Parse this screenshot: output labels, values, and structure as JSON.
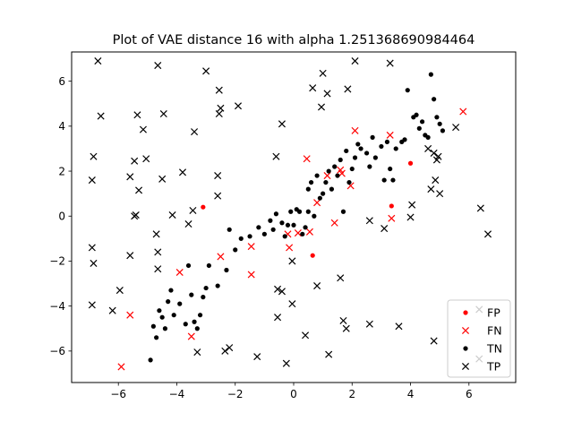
{
  "chart_data": {
    "type": "scatter",
    "title": "Plot of  VAE distance 16 with alpha 1.251368690984464",
    "xlabel": "",
    "ylabel": "",
    "xlim": [
      -7.6,
      7.6
    ],
    "ylim": [
      -7.4,
      7.3
    ],
    "xticks": [
      -6,
      -4,
      -2,
      0,
      2,
      4,
      6
    ],
    "yticks": [
      -6,
      -4,
      -2,
      0,
      2,
      4,
      6
    ],
    "xtick_labels": [
      "−6",
      "−4",
      "−2",
      "0",
      "2",
      "4",
      "6"
    ],
    "ytick_labels": [
      "−6",
      "−4",
      "−2",
      "0",
      "2",
      "4",
      "6"
    ],
    "grid": false,
    "legend_position": "lower-right",
    "series": [
      {
        "name": "FP",
        "marker": "dot",
        "color": "#ff0000",
        "points": [
          [
            -3.1,
            0.4
          ],
          [
            0.65,
            -1.75
          ],
          [
            4.0,
            2.35
          ],
          [
            3.35,
            0.45
          ]
        ]
      },
      {
        "name": "FN",
        "marker": "x",
        "color": "#ff0000",
        "points": [
          [
            -5.9,
            -6.7
          ],
          [
            -5.6,
            -4.4
          ],
          [
            -3.9,
            -2.5
          ],
          [
            -3.5,
            -5.35
          ],
          [
            -2.5,
            -1.8
          ],
          [
            -1.45,
            -1.35
          ],
          [
            -1.45,
            -2.6
          ],
          [
            -0.15,
            -1.4
          ],
          [
            -0.2,
            -0.8
          ],
          [
            0.15,
            -0.75
          ],
          [
            0.55,
            -0.7
          ],
          [
            0.45,
            2.55
          ],
          [
            0.8,
            0.6
          ],
          [
            1.15,
            1.8
          ],
          [
            1.4,
            -0.3
          ],
          [
            1.6,
            2.05
          ],
          [
            1.65,
            1.9
          ],
          [
            1.95,
            1.35
          ],
          [
            2.1,
            3.8
          ],
          [
            3.3,
            3.6
          ],
          [
            3.35,
            -0.1
          ],
          [
            5.8,
            4.65
          ]
        ]
      },
      {
        "name": "TN",
        "marker": "dot",
        "color": "#000000",
        "points": [
          [
            -4.9,
            -6.4
          ],
          [
            -4.7,
            -5.4
          ],
          [
            -4.8,
            -4.9
          ],
          [
            -4.6,
            -4.2
          ],
          [
            -4.5,
            -4.5
          ],
          [
            -4.3,
            -3.8
          ],
          [
            -4.4,
            -5.0
          ],
          [
            -4.2,
            -3.3
          ],
          [
            -4.1,
            -4.4
          ],
          [
            -3.9,
            -3.9
          ],
          [
            -3.7,
            -4.8
          ],
          [
            -3.6,
            -2.2
          ],
          [
            -3.5,
            -3.5
          ],
          [
            -3.4,
            -4.7
          ],
          [
            -3.3,
            -5.0
          ],
          [
            -3.2,
            -4.4
          ],
          [
            -3.1,
            -3.6
          ],
          [
            -3.0,
            -3.2
          ],
          [
            -2.9,
            -2.2
          ],
          [
            -2.6,
            -3.1
          ],
          [
            -2.3,
            -2.4
          ],
          [
            -2.2,
            -0.6
          ],
          [
            -2.0,
            -1.5
          ],
          [
            -1.8,
            -1.0
          ],
          [
            -1.5,
            -0.9
          ],
          [
            -1.2,
            -0.5
          ],
          [
            -1.0,
            -0.8
          ],
          [
            -0.8,
            -0.2
          ],
          [
            -0.7,
            -0.6
          ],
          [
            -0.6,
            0.1
          ],
          [
            -0.4,
            -0.3
          ],
          [
            -0.3,
            -0.9
          ],
          [
            -0.2,
            -0.4
          ],
          [
            -0.1,
            0.2
          ],
          [
            0.0,
            -0.4
          ],
          [
            0.1,
            0.3
          ],
          [
            0.2,
            0.2
          ],
          [
            0.3,
            -0.8
          ],
          [
            0.4,
            -0.5
          ],
          [
            0.5,
            0.2
          ],
          [
            0.5,
            1.2
          ],
          [
            0.6,
            1.5
          ],
          [
            0.7,
            0.0
          ],
          [
            0.8,
            1.8
          ],
          [
            0.9,
            0.8
          ],
          [
            1.0,
            1.0
          ],
          [
            1.1,
            1.5
          ],
          [
            1.2,
            2.0
          ],
          [
            1.3,
            1.2
          ],
          [
            1.4,
            2.2
          ],
          [
            1.5,
            1.8
          ],
          [
            1.6,
            2.5
          ],
          [
            1.7,
            0.2
          ],
          [
            1.8,
            2.9
          ],
          [
            1.9,
            1.5
          ],
          [
            2.0,
            2.1
          ],
          [
            2.1,
            2.6
          ],
          [
            2.2,
            3.2
          ],
          [
            2.3,
            3.0
          ],
          [
            2.5,
            2.8
          ],
          [
            2.6,
            2.2
          ],
          [
            2.7,
            3.5
          ],
          [
            2.8,
            2.6
          ],
          [
            3.0,
            3.1
          ],
          [
            3.1,
            1.6
          ],
          [
            3.2,
            3.3
          ],
          [
            3.3,
            2.1
          ],
          [
            3.4,
            1.6
          ],
          [
            3.5,
            3.0
          ],
          [
            3.7,
            3.3
          ],
          [
            3.8,
            3.4
          ],
          [
            3.9,
            5.6
          ],
          [
            4.1,
            4.4
          ],
          [
            4.2,
            4.5
          ],
          [
            4.3,
            3.9
          ],
          [
            4.4,
            4.2
          ],
          [
            4.5,
            3.6
          ],
          [
            4.6,
            3.5
          ],
          [
            4.7,
            6.3
          ],
          [
            4.8,
            5.2
          ],
          [
            4.9,
            4.4
          ],
          [
            5.0,
            4.1
          ],
          [
            5.1,
            3.8
          ]
        ]
      },
      {
        "name": "TP",
        "marker": "x",
        "color": "#000000",
        "points": [
          [
            -6.9,
            -3.95
          ],
          [
            -6.9,
            -1.4
          ],
          [
            -6.85,
            -2.1
          ],
          [
            -6.9,
            1.6
          ],
          [
            -6.85,
            2.65
          ],
          [
            -6.7,
            6.9
          ],
          [
            -6.6,
            4.45
          ],
          [
            -6.2,
            -4.2
          ],
          [
            -5.95,
            -3.3
          ],
          [
            -5.6,
            -1.75
          ],
          [
            -5.6,
            1.75
          ],
          [
            -5.45,
            2.45
          ],
          [
            -5.45,
            0.0
          ],
          [
            -5.4,
            0.05
          ],
          [
            -5.35,
            4.5
          ],
          [
            -5.3,
            1.15
          ],
          [
            -5.15,
            3.85
          ],
          [
            -5.05,
            2.55
          ],
          [
            -4.7,
            -0.8
          ],
          [
            -4.65,
            -1.6
          ],
          [
            -4.65,
            -2.35
          ],
          [
            -4.65,
            6.7
          ],
          [
            -4.5,
            1.65
          ],
          [
            -4.45,
            4.55
          ],
          [
            -4.15,
            0.05
          ],
          [
            -3.8,
            1.95
          ],
          [
            -3.6,
            -0.35
          ],
          [
            -3.45,
            0.25
          ],
          [
            -3.4,
            3.75
          ],
          [
            -3.3,
            -6.05
          ],
          [
            -3.0,
            6.45
          ],
          [
            -2.6,
            0.9
          ],
          [
            -2.6,
            1.8
          ],
          [
            -2.55,
            4.55
          ],
          [
            -2.55,
            5.6
          ],
          [
            -2.5,
            4.8
          ],
          [
            -2.35,
            -6.0
          ],
          [
            -2.2,
            -5.85
          ],
          [
            -1.9,
            4.9
          ],
          [
            -1.25,
            -6.25
          ],
          [
            -0.6,
            2.65
          ],
          [
            -0.55,
            -4.5
          ],
          [
            -0.55,
            -3.25
          ],
          [
            -0.4,
            -3.35
          ],
          [
            -0.4,
            4.1
          ],
          [
            -0.25,
            -6.55
          ],
          [
            -0.05,
            -3.9
          ],
          [
            -0.05,
            -2.0
          ],
          [
            0.4,
            -5.3
          ],
          [
            0.65,
            5.7
          ],
          [
            0.8,
            -3.1
          ],
          [
            0.95,
            4.85
          ],
          [
            1.0,
            6.35
          ],
          [
            1.15,
            5.45
          ],
          [
            1.2,
            -6.15
          ],
          [
            1.6,
            -2.75
          ],
          [
            1.7,
            -4.65
          ],
          [
            1.8,
            -5.0
          ],
          [
            1.85,
            5.65
          ],
          [
            2.1,
            6.9
          ],
          [
            2.6,
            -0.2
          ],
          [
            2.6,
            -4.8
          ],
          [
            3.1,
            -0.55
          ],
          [
            3.3,
            6.8
          ],
          [
            3.6,
            -4.9
          ],
          [
            4.0,
            -0.05
          ],
          [
            4.05,
            0.5
          ],
          [
            4.6,
            3.0
          ],
          [
            4.7,
            1.2
          ],
          [
            4.8,
            2.8
          ],
          [
            4.8,
            -5.55
          ],
          [
            4.85,
            1.6
          ],
          [
            4.9,
            2.5
          ],
          [
            4.95,
            2.65
          ],
          [
            5.0,
            1.0
          ],
          [
            5.55,
            3.95
          ],
          [
            6.35,
            -6.35
          ],
          [
            6.35,
            -4.15
          ],
          [
            6.4,
            0.35
          ],
          [
            6.65,
            -0.8
          ]
        ]
      }
    ]
  }
}
